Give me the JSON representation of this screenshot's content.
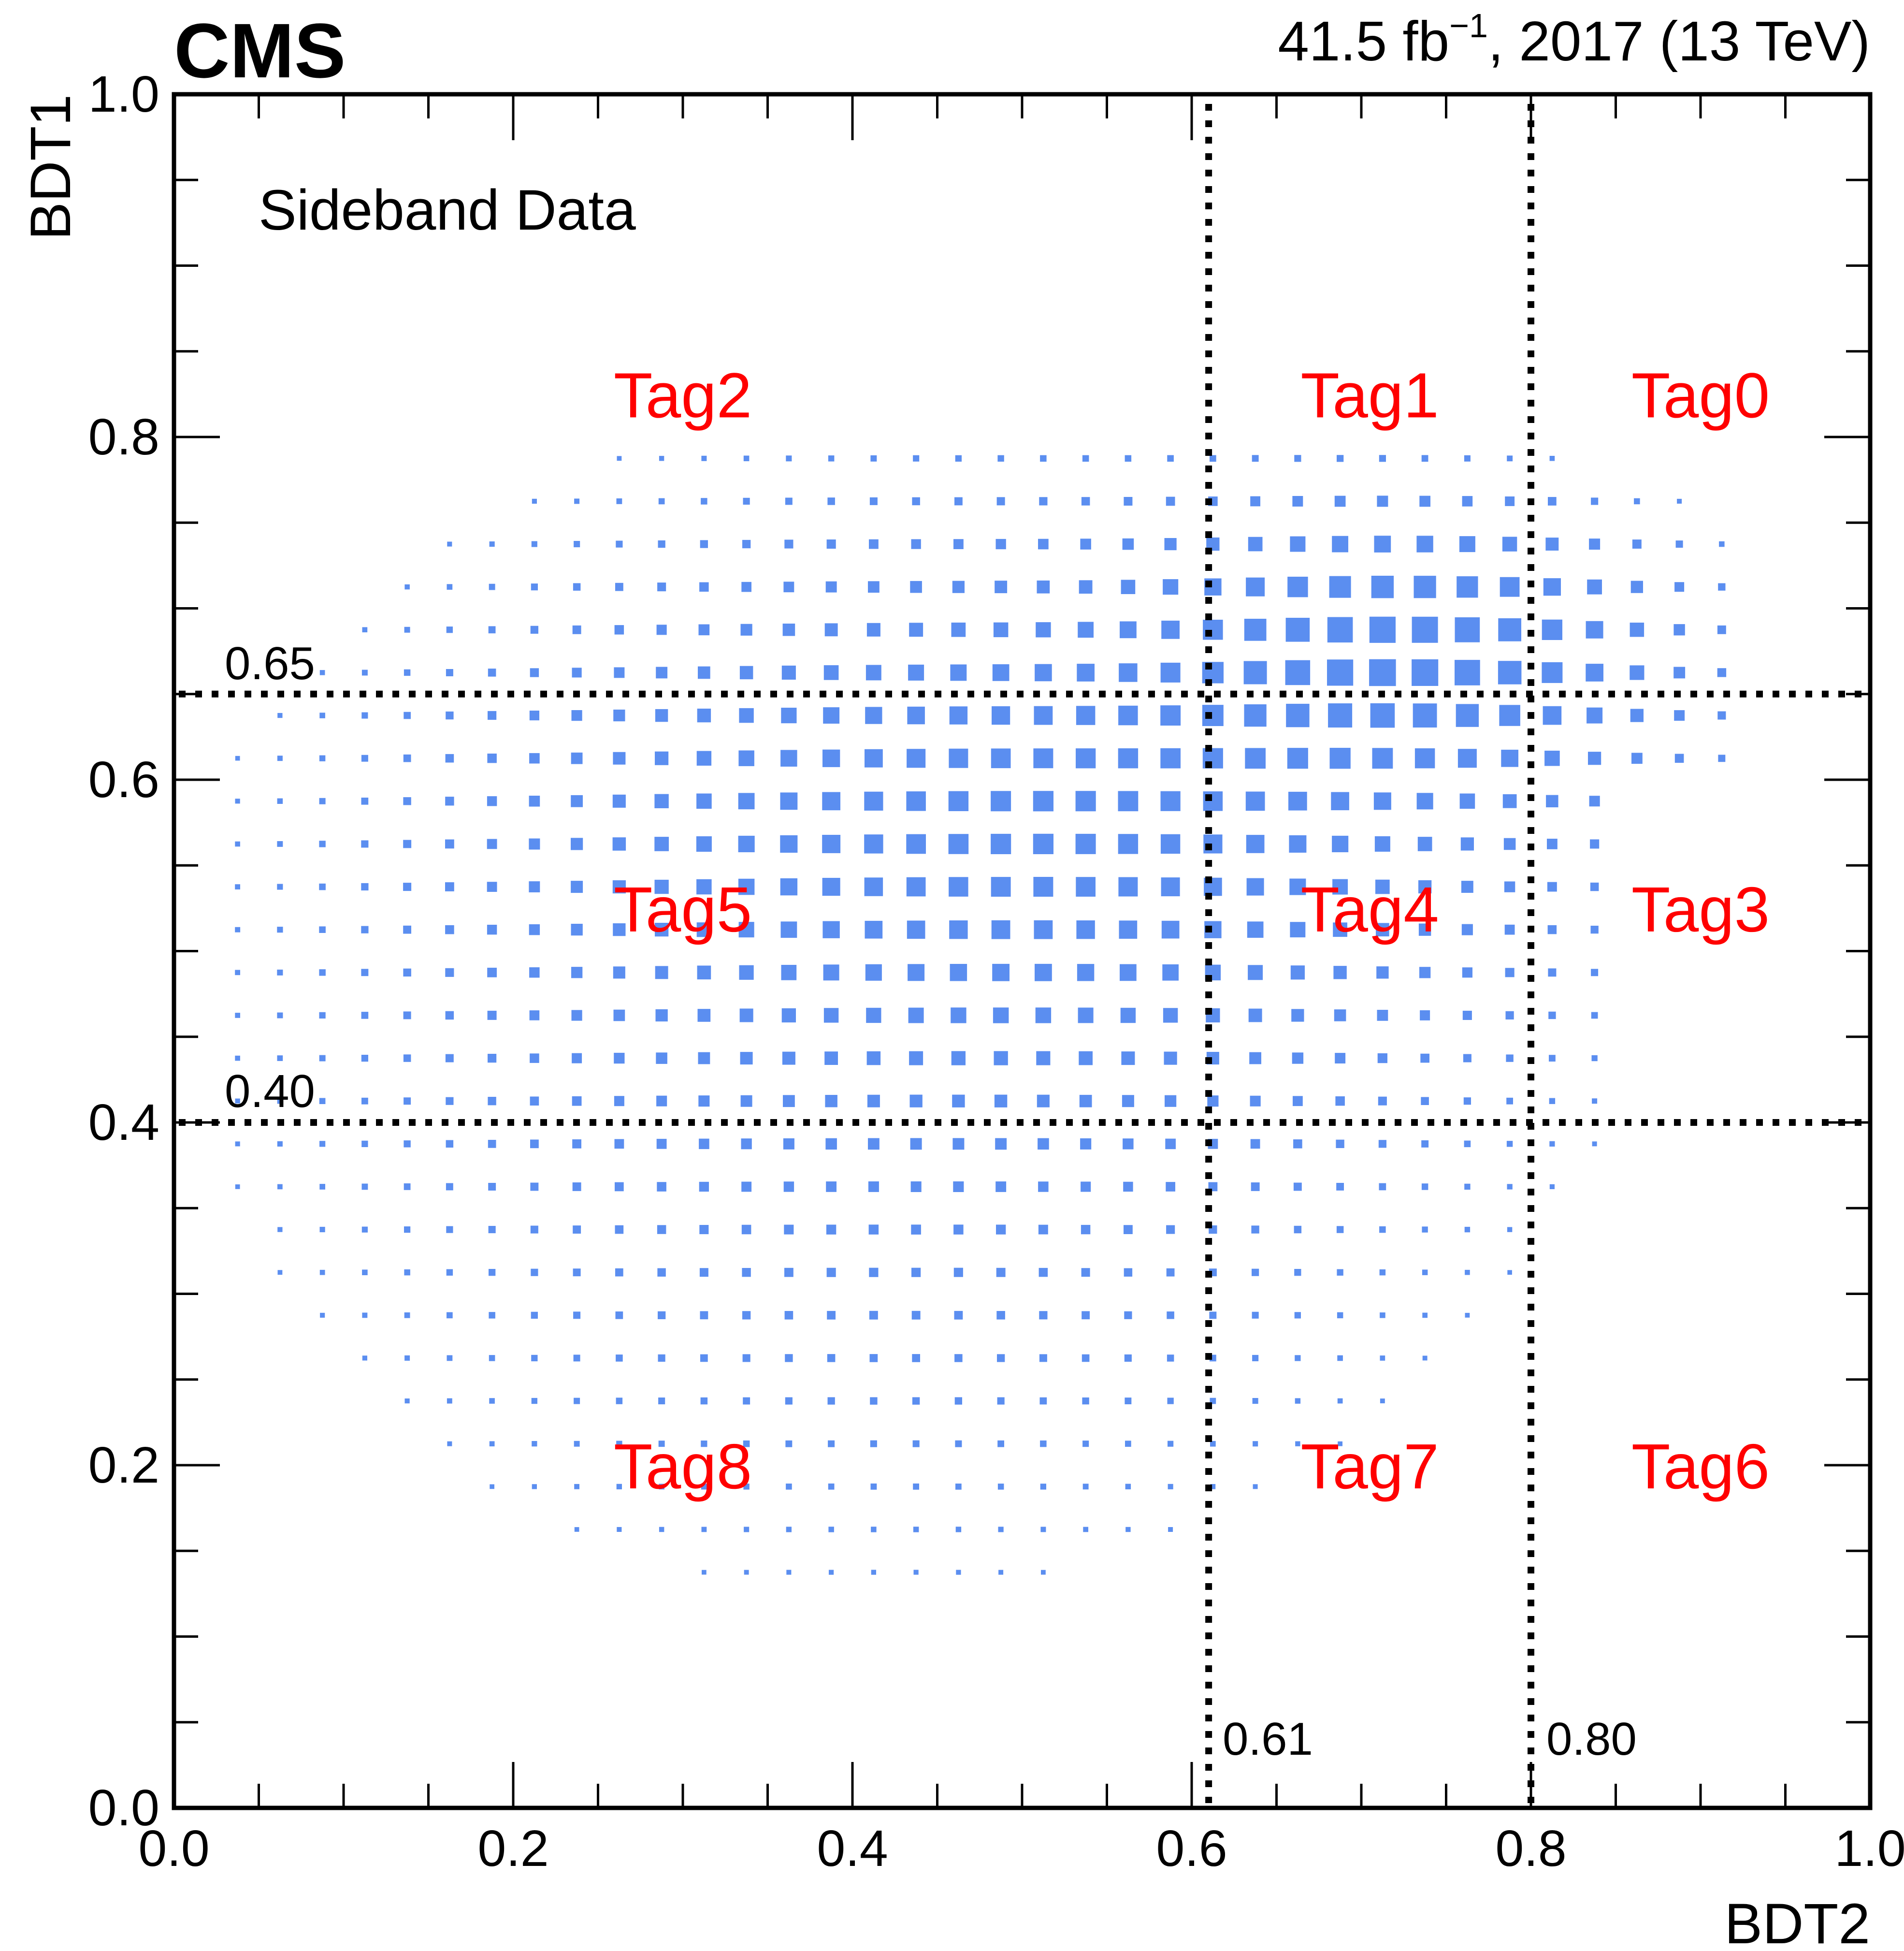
{
  "header": {
    "experiment": "CMS",
    "lumi_prefix": "41.5 fb",
    "lumi_exponent": "−1",
    "lumi_suffix": ", 2017 (13 TeV)"
  },
  "legend": {
    "text": "Sideband Data"
  },
  "cut_labels": {
    "bdt1_high": "0.65",
    "bdt1_low": "0.40",
    "bdt2_low": "0.61",
    "bdt2_high": "0.80"
  },
  "tags": [
    {
      "label": "Tag0",
      "bdt2": 0.9,
      "bdt1": 0.825
    },
    {
      "label": "Tag1",
      "bdt2": 0.705,
      "bdt1": 0.825
    },
    {
      "label": "Tag2",
      "bdt2": 0.3,
      "bdt1": 0.825
    },
    {
      "label": "Tag3",
      "bdt2": 0.9,
      "bdt1": 0.525
    },
    {
      "label": "Tag4",
      "bdt2": 0.705,
      "bdt1": 0.525
    },
    {
      "label": "Tag5",
      "bdt2": 0.3,
      "bdt1": 0.525
    },
    {
      "label": "Tag6",
      "bdt2": 0.9,
      "bdt1": 0.2
    },
    {
      "label": "Tag7",
      "bdt2": 0.705,
      "bdt1": 0.2
    },
    {
      "label": "Tag8",
      "bdt2": 0.3,
      "bdt1": 0.2
    }
  ],
  "colors": {
    "box": "#5b8ef0",
    "tag": "#ff0000",
    "cut": "#000000"
  },
  "chart_data": {
    "type": "heatmap",
    "style": "box",
    "xlabel": "BDT2",
    "ylabel": "BDT1",
    "xlim": [
      0.0,
      1.0
    ],
    "ylim": [
      0.0,
      1.0
    ],
    "x_ticks": [
      "0.0",
      "0.2",
      "0.4",
      "0.6",
      "0.8",
      "1.0"
    ],
    "y_ticks": [
      "0.0",
      "0.2",
      "0.4",
      "0.6",
      "0.8",
      "1.0"
    ],
    "bin_width": 0.025,
    "cuts": {
      "bdt2": [
        0.61,
        0.8
      ],
      "bdt1": [
        0.4,
        0.65
      ]
    },
    "grid": false,
    "density_peak": {
      "bdt2": 0.73,
      "bdt1": 0.675
    },
    "relative_density_note": "box area proportional to event density; maximum at peak"
  }
}
